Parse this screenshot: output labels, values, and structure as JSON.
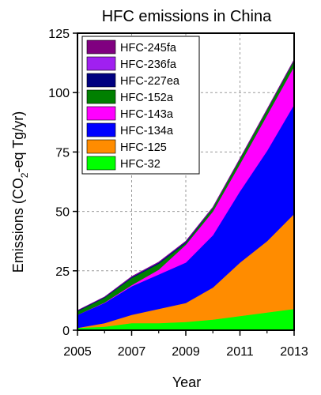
{
  "chart_data": {
    "type": "area",
    "title": "HFC emissions in China",
    "xlabel": "Year",
    "ylabel_pre": "Emissions (CO",
    "ylabel_sub": "2",
    "ylabel_post": "-eq Tg/yr)",
    "xlim": [
      2005,
      2013
    ],
    "ylim": [
      0,
      125
    ],
    "x_ticks": [
      2005,
      2007,
      2009,
      2011,
      2013
    ],
    "x_minor_ticks": [
      2006,
      2008,
      2010,
      2012
    ],
    "y_ticks": [
      0,
      25,
      50,
      75,
      100,
      125
    ],
    "grid": true,
    "legend_position": "top-left",
    "stacked": true,
    "x": [
      2005,
      2006,
      2007,
      2008,
      2009,
      2010,
      2011,
      2012,
      2013
    ],
    "series": [
      {
        "name": "HFC-32",
        "color": "#00ff00",
        "values": [
          1.0,
          1.5,
          3.0,
          3.0,
          3.5,
          4.5,
          6.0,
          7.5,
          9.0
        ]
      },
      {
        "name": "HFC-125",
        "color": "#ff8c00",
        "values": [
          0.0,
          1.5,
          3.5,
          6.0,
          8.0,
          13.5,
          22.5,
          30.0,
          40.0
        ]
      },
      {
        "name": "HFC-134a",
        "color": "#0000ff",
        "values": [
          5.5,
          8.5,
          12.0,
          14.5,
          17.0,
          22.0,
          30.0,
          38.0,
          46.0
        ]
      },
      {
        "name": "HFC-143a",
        "color": "#ff00ff",
        "values": [
          0.0,
          0.2,
          0.5,
          2.0,
          7.5,
          10.0,
          11.5,
          15.0,
          16.0
        ]
      },
      {
        "name": "HFC-152a",
        "color": "#008000",
        "values": [
          1.5,
          2.0,
          3.0,
          2.5,
          0.8,
          1.5,
          2.0,
          2.2,
          2.5
        ]
      },
      {
        "name": "HFC-227ea",
        "color": "#000080",
        "values": [
          0.3,
          0.3,
          0.4,
          0.5,
          0.5,
          0.1,
          0.1,
          0.1,
          0.2
        ]
      },
      {
        "name": "HFC-236fa",
        "color": "#a020f0",
        "values": [
          0.0,
          0.0,
          0.1,
          0.1,
          0.1,
          0.1,
          0.1,
          0.1,
          0.1
        ]
      },
      {
        "name": "HFC-245fa",
        "color": "#800080",
        "values": [
          0.0,
          0.0,
          0.1,
          0.1,
          0.1,
          0.1,
          0.1,
          0.1,
          0.1
        ]
      }
    ]
  }
}
